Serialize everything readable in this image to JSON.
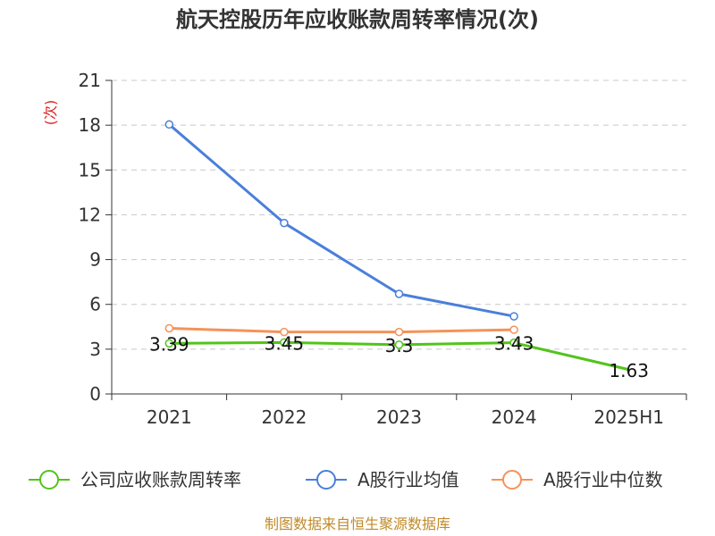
{
  "chart_data": {
    "type": "line",
    "title": "航天控股历年应收账款周转率情况(次)",
    "ylabel": "(次)",
    "xlabel": "",
    "categories": [
      "2021",
      "2022",
      "2023",
      "2024",
      "2025H1"
    ],
    "ylim": [
      0,
      21
    ],
    "yticks": [
      0,
      3,
      6,
      9,
      12,
      15,
      18,
      21
    ],
    "grid": true,
    "legend_position": "bottom",
    "series": [
      {
        "name": "公司应收账款周转率",
        "color": "#52c41a",
        "values": [
          3.39,
          3.45,
          3.3,
          3.43,
          1.63
        ],
        "labels": [
          "3.39",
          "3.45",
          "3.3",
          "3.43",
          "1.63"
        ]
      },
      {
        "name": "A股行业均值",
        "color": "#4a7fdb",
        "values": [
          18.05,
          11.45,
          6.7,
          5.2,
          null
        ]
      },
      {
        "name": "A股行业中位数",
        "color": "#f5925a",
        "values": [
          4.4,
          4.15,
          4.15,
          4.3,
          null
        ]
      }
    ],
    "source": "制图数据来自恒生聚源数据库"
  }
}
